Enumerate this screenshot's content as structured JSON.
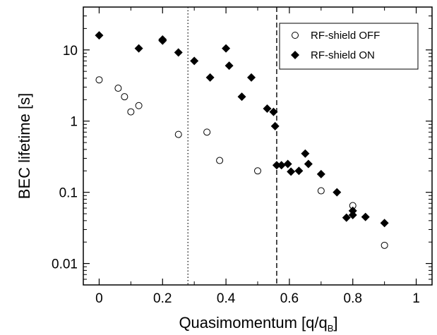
{
  "chart_data": {
    "type": "scatter",
    "xlabel": "Quasimomentum [q/q",
    "xlabel_sub": "B",
    "xlabel_end": "]",
    "ylabel": "BEC lifetime [s]",
    "xlim": [
      -0.05,
      1.05
    ],
    "ylim": [
      0.005,
      40
    ],
    "y_scale": "log",
    "x_ticks": [
      0,
      0.2,
      0.4,
      0.6,
      0.8,
      1
    ],
    "x_tick_labels": [
      "0",
      "0.2",
      "0.4",
      "0.6",
      "0.8",
      "1"
    ],
    "y_ticks": [
      0.01,
      0.1,
      1,
      10
    ],
    "y_tick_labels": [
      "0.01",
      "0.1",
      "1",
      "10"
    ],
    "grid": false,
    "legend_position": "top-right",
    "vlines": [
      {
        "x": 0.28,
        "style": "dotted"
      },
      {
        "x": 0.56,
        "style": "dashed"
      }
    ],
    "series": [
      {
        "name": "RF-shield OFF",
        "marker": "open-circle",
        "x": [
          0,
          0.06,
          0.08,
          0.1,
          0.125,
          0.25,
          0.34,
          0.38,
          0.5,
          0.7,
          0.8,
          0.9
        ],
        "y": [
          3.8,
          2.9,
          2.2,
          1.35,
          1.65,
          0.65,
          0.7,
          0.28,
          0.2,
          0.105,
          0.065,
          0.018
        ]
      },
      {
        "name": "RF-shield ON",
        "marker": "filled-diamond",
        "x": [
          0,
          0.125,
          0.2,
          0.2,
          0.25,
          0.3,
          0.35,
          0.4,
          0.41,
          0.45,
          0.48,
          0.53,
          0.55,
          0.555,
          0.56,
          0.575,
          0.595,
          0.605,
          0.63,
          0.65,
          0.66,
          0.7,
          0.75,
          0.78,
          0.8,
          0.8,
          0.84,
          0.9
        ],
        "y": [
          16,
          10.5,
          14,
          13.5,
          9.2,
          7,
          4.1,
          10.5,
          6,
          2.2,
          4.1,
          1.5,
          1.35,
          0.85,
          0.24,
          0.24,
          0.25,
          0.195,
          0.2,
          0.35,
          0.25,
          0.18,
          0.1,
          0.044,
          0.055,
          0.048,
          0.045,
          0.037
        ]
      }
    ]
  }
}
